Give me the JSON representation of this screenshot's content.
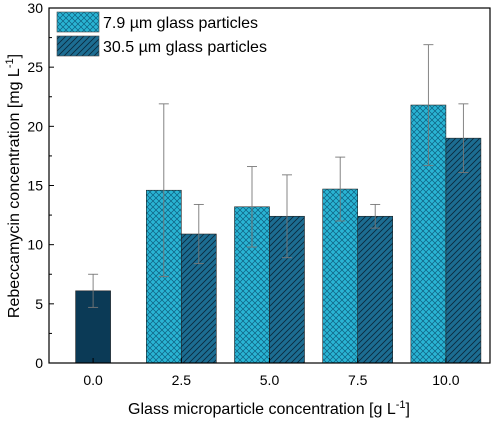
{
  "chart_data": {
    "type": "bar",
    "xlabel": "Glass microparticle concentration [g L",
    "xlabel_sup": "-1",
    "xlabel_end": "]",
    "ylabel": "Rebeccamycin concentration [mg L",
    "ylabel_sup": "-1",
    "ylabel_end": "]",
    "categories": [
      "0.0",
      "2.5",
      "5.0",
      "7.5",
      "10.0"
    ],
    "ylim": [
      0,
      30
    ],
    "yticks": [
      "0",
      "5",
      "10",
      "15",
      "20",
      "25",
      "30"
    ],
    "grid": false,
    "legend_position": "top-left",
    "control": {
      "category": "0.0",
      "value": 6.1,
      "error": 1.4,
      "color": "#0b3a56"
    },
    "series": [
      {
        "name": "7.9 µm glass particles",
        "color": "#29b4d3",
        "hatch": "crosshatch",
        "values": [
          null,
          14.6,
          13.2,
          14.7,
          21.8
        ],
        "errors": [
          null,
          7.3,
          3.4,
          2.7,
          5.1
        ]
      },
      {
        "name": "30.5 µm glass particles",
        "color": "#1c6d92",
        "hatch": "diagonal",
        "values": [
          null,
          10.9,
          12.4,
          12.4,
          19.0
        ],
        "errors": [
          null,
          2.5,
          3.5,
          1.0,
          2.9
        ]
      }
    ]
  }
}
